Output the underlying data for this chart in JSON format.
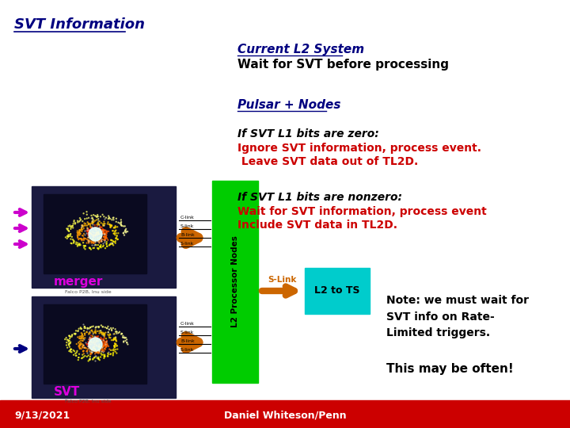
{
  "title": "SVT Information",
  "section1_title": "Current L2 System",
  "section1_text": "Wait for SVT before processing",
  "section2_title": "Pulsar + Nodes",
  "zero_bits_italic": "If SVT L1 bits are zero:",
  "zero_bits_red1": "Ignore SVT information, process event.",
  "zero_bits_red2": " Leave SVT data out of TL2D.",
  "nonzero_bits_italic": "If SVT L1 bits are nonzero:",
  "nonzero_bits_red1": "Wait for SVT information, process event",
  "nonzero_bits_red2": "Include SVT data in TL2D.",
  "note_bold": "Note: we must wait for\nSVT info on Rate-\nLimited triggers.",
  "note_often": "This may be often!",
  "l2_nodes_label": "L2 Processor Nodes",
  "l2_ts_label": "L2 to TS",
  "s_link_label": "S-Link",
  "merger_label": "merger",
  "svt_label": "SVT",
  "footer_date": "9/13/2021",
  "footer_author": "Daniel Whiteson/Penn",
  "bg_color": "#ffffff",
  "footer_bg": "#cc0000",
  "title_color": "#000080",
  "section_title_color": "#000080",
  "red_text_color": "#cc0000",
  "black_text": "#000000",
  "green_box_color": "#00cc00",
  "cyan_box_color": "#00cccc",
  "orange_arrow_color": "#cc6600",
  "magenta_arrow_color": "#cc00cc",
  "navy_arrow_color": "#000080"
}
